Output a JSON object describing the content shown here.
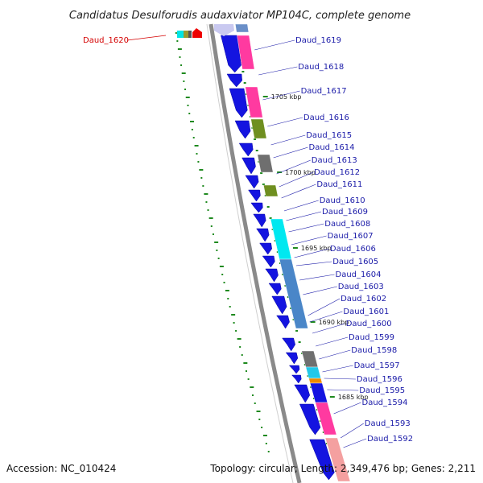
{
  "title": "Candidatus Desulforudis audaxviator MP104C, complete genome",
  "footer": {
    "accession": "Accession: NC_010424",
    "summary": "Topology: circular; Length: 2,349,476 bp; Genes: 2,211"
  },
  "colors": {
    "cds": "#1414e0",
    "backbone": "#8a8a8a",
    "skew": "#1f8a1f",
    "label": "#1a1aa8",
    "highlight": "#d40000"
  },
  "highlighted_gene": "Daud_1620",
  "kbp_marks": [
    "1705 kbp",
    "1700 kbp",
    "1695 kbp",
    "1690 kbp",
    "1685 kbp"
  ],
  "gene_labels": [
    "Daud_1619",
    "Daud_1618",
    "Daud_1617",
    "Daud_1616",
    "Daud_1615",
    "Daud_1614",
    "Daud_1613",
    "Daud_1612",
    "Daud_1611",
    "Daud_1610",
    "Daud_1609",
    "Daud_1608",
    "Daud_1607",
    "Daud_1606",
    "Daud_1605",
    "Daud_1604",
    "Daud_1603",
    "Daud_1602",
    "Daud_1601",
    "Daud_1600",
    "Daud_1599",
    "Daud_1598",
    "Daud_1597",
    "Daud_1596",
    "Daud_1595",
    "Daud_1594",
    "Daud_1593",
    "Daud_1592"
  ]
}
